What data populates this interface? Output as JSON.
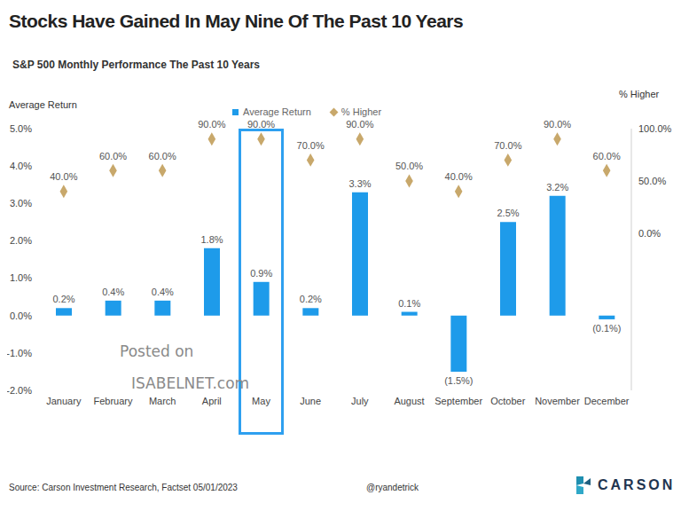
{
  "chart_data": {
    "type": "bar",
    "title": "Stocks Have Gained In May Nine Of The Past 10 Years",
    "subtitle": "S&P 500 Monthly Performance The Past 10 Years",
    "y_label": "Average Return",
    "y2_label": "% Higher",
    "categories": [
      "January",
      "February",
      "March",
      "April",
      "May",
      "June",
      "July",
      "August",
      "September",
      "October",
      "November",
      "December"
    ],
    "series": [
      {
        "name": "Average Return",
        "type": "bar",
        "color": "#1E9BEA",
        "values": [
          0.2,
          0.4,
          0.4,
          1.8,
          0.9,
          0.2,
          3.3,
          0.1,
          -1.5,
          2.5,
          3.2,
          -0.1
        ],
        "value_labels": [
          "0.2%",
          "0.4%",
          "0.4%",
          "1.8%",
          "0.9%",
          "0.2%",
          "3.3%",
          "0.1%",
          "(1.5%)",
          "2.5%",
          "3.2%",
          "(0.1%)"
        ]
      },
      {
        "name": "% Higher",
        "type": "scatter",
        "marker": "diamond",
        "color": "#C8A86B",
        "axis": "y2",
        "values": [
          40,
          60,
          60,
          90,
          90,
          70,
          90,
          50,
          40,
          70,
          90,
          60
        ],
        "value_labels": [
          "40.0%",
          "60.0%",
          "60.0%",
          "90.0%",
          "90.0%",
          "70.0%",
          "90.0%",
          "50.0%",
          "40.0%",
          "70.0%",
          "90.0%",
          "60.0%"
        ]
      }
    ],
    "ylim": [
      -2,
      5
    ],
    "yticks": [
      {
        "value": -2,
        "label": "-2.0%"
      },
      {
        "value": -1,
        "label": "-1.0%"
      },
      {
        "value": 0,
        "label": "0.0%"
      },
      {
        "value": 1,
        "label": "1.0%"
      },
      {
        "value": 2,
        "label": "2.0%"
      },
      {
        "value": 3,
        "label": "3.0%"
      },
      {
        "value": 4,
        "label": "4.0%"
      },
      {
        "value": 5,
        "label": "5.0%"
      }
    ],
    "y2lim": [
      -150,
      100
    ],
    "y2ticks": [
      {
        "value": 0,
        "label": "0.0%"
      },
      {
        "value": 50,
        "label": "50.0%"
      },
      {
        "value": 100,
        "label": "100.0%"
      }
    ],
    "data_labels": true,
    "legend": "top",
    "grid": false,
    "annotations": [
      "Posted on",
      "ISABELNET.com"
    ],
    "source": "Source: Carson Investment Research, Factset 05/01/2023",
    "credit": "@ryandetrick",
    "logo": "CARSON"
  }
}
